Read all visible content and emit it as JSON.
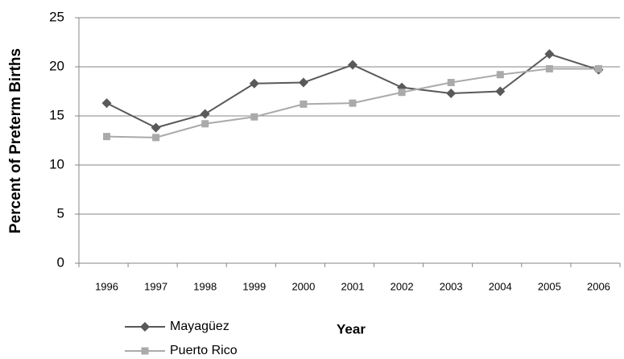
{
  "chart_data": {
    "type": "line",
    "y_label": "Percent of Preterm Births",
    "x_label": "Year",
    "categories": [
      "1996",
      "1997",
      "1998",
      "1999",
      "2000",
      "2001",
      "2002",
      "2003",
      "2004",
      "2005",
      "2006"
    ],
    "series": [
      {
        "name": "Mayagüez",
        "color": "#595959",
        "marker": "diamond",
        "values": [
          16.3,
          13.8,
          15.2,
          18.3,
          18.4,
          20.2,
          17.9,
          17.3,
          17.5,
          21.3,
          19.7
        ]
      },
      {
        "name": "Puerto Rico",
        "color": "#aaaaaa",
        "marker": "square",
        "values": [
          12.9,
          12.8,
          14.2,
          14.9,
          16.2,
          16.3,
          17.4,
          18.4,
          19.2,
          19.8,
          19.8
        ]
      }
    ],
    "ylim": [
      0,
      25
    ],
    "yticks": [
      0,
      5,
      10,
      15,
      20,
      25
    ],
    "grid": true
  }
}
